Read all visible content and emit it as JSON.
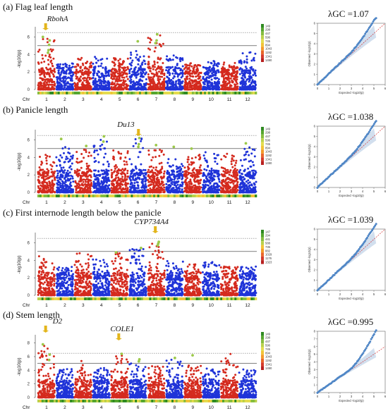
{
  "colors": {
    "odd_chr": "#d42a1e",
    "even_chr": "#1f33d8",
    "significant": "#9cc94a",
    "threshold_dotted": "#777777",
    "threshold_solid": "#333333",
    "qq_points": "#4f86c6",
    "qq_band": "#c7d7ea",
    "qq_diagonal": "#d21f1f",
    "arrow": "#e3b51b",
    "density_palette": [
      "#2f8a22",
      "#55a62e",
      "#86bd3f",
      "#b9d14b",
      "#e4dc4f",
      "#f2c338",
      "#f39a2a",
      "#e9662a",
      "#d53b2a",
      "#b82020"
    ]
  },
  "common": {
    "chr_axis_label": "Chr",
    "chromosomes": [
      "1",
      "2",
      "3",
      "4",
      "5",
      "6",
      "7",
      "8",
      "9",
      "10",
      "11",
      "12"
    ],
    "manhattan_ylabel": "-log10(p)",
    "qq_xlabel": "Expected -log10(p)",
    "qq_ylabel": "Observed -log10(p)",
    "qq_xticks": [
      "0",
      "1",
      "2",
      "3",
      "4",
      "5",
      "6"
    ],
    "lambda_prefix": "λGC ="
  },
  "chart_data": [
    {
      "type": "manhattan",
      "panel": "(a)",
      "title": "Flag leaf length",
      "ylim": [
        0,
        7
      ],
      "yticks": [
        "0",
        "2",
        "4",
        "6"
      ],
      "thresholds": {
        "suggestive": 5.0,
        "significant": 6.5
      },
      "gene_labels": [
        {
          "text": "RbohA",
          "chr": 1,
          "arrow": true
        }
      ],
      "density_legend": [
        "149",
        "298",
        "447",
        "596",
        "745",
        "894",
        "1043",
        "1192",
        "1341",
        "1490"
      ],
      "chromosome_peaks": [
        5.9,
        3.0,
        3.6,
        3.8,
        3.6,
        4.7,
        6.5,
        3.9,
        3.0,
        3.3,
        3.2,
        4.4
      ],
      "significant_snps": [
        {
          "chr": 1,
          "y": 6.0
        },
        {
          "chr": 1,
          "y": 5.6
        },
        {
          "chr": 1,
          "y": 5.1
        },
        {
          "chr": 1,
          "y": 4.5
        },
        {
          "chr": 1,
          "y": 4.2
        },
        {
          "chr": 7,
          "y": 6.3
        },
        {
          "chr": 7,
          "y": 5.6
        },
        {
          "chr": 6,
          "y": 5.5
        },
        {
          "chr": 7,
          "y": 5.3
        }
      ],
      "qq": {
        "lambda": "1.07",
        "yticks": [
          "0",
          "1",
          "2",
          "3",
          "4",
          "5",
          "6"
        ],
        "ymax": 6.5
      }
    },
    {
      "type": "manhattan",
      "panel": "(b)",
      "title": "Panicle length",
      "ylim": [
        0,
        7
      ],
      "yticks": [
        "0",
        "2",
        "4",
        "6"
      ],
      "thresholds": {
        "suggestive": 5.0,
        "significant": 6.5
      },
      "gene_labels": [
        {
          "text": "Du13",
          "chr": 6,
          "arrow": true
        }
      ],
      "density_legend": [
        "149",
        "298",
        "447",
        "596",
        "745",
        "894",
        "1043",
        "1192",
        "1341",
        "1490"
      ],
      "chromosome_peaks": [
        4.3,
        5.2,
        5.0,
        6.0,
        4.8,
        6.5,
        5.0,
        3.9,
        4.3,
        4.6,
        4.6,
        5.4
      ],
      "significant_snps": [
        {
          "chr": 2,
          "y": 6.1
        },
        {
          "chr": 3,
          "y": 5.3
        },
        {
          "chr": 4,
          "y": 6.4
        },
        {
          "chr": 4,
          "y": 5.8
        },
        {
          "chr": 6,
          "y": 6.2
        },
        {
          "chr": 6,
          "y": 5.5
        },
        {
          "chr": 6,
          "y": 5.2
        },
        {
          "chr": 7,
          "y": 5.4
        },
        {
          "chr": 8,
          "y": 5.2
        },
        {
          "chr": 9,
          "y": 5.0
        },
        {
          "chr": 12,
          "y": 5.6
        }
      ],
      "qq": {
        "lambda": "1.038",
        "yticks": [
          "0",
          "1",
          "2",
          "3",
          "4",
          "5",
          "6"
        ],
        "ymax": 6.5
      }
    },
    {
      "type": "manhattan",
      "panel": "(c)",
      "title": "First internode length below the panicle",
      "ylim": [
        0,
        7
      ],
      "yticks": [
        "0",
        "2",
        "4",
        "6"
      ],
      "thresholds": {
        "suggestive": 5.0,
        "significant": 6.5
      },
      "gene_labels": [
        {
          "text": "CYP734A4",
          "chr": 7,
          "arrow": true
        }
      ],
      "density_legend": [
        "147",
        "294",
        "441",
        "588",
        "735",
        "882",
        "1029",
        "1176",
        "1323"
      ],
      "chromosome_peaks": [
        4.5,
        3.5,
        4.8,
        4.1,
        4.9,
        5.4,
        6.1,
        4.0,
        3.6,
        3.8,
        3.4,
        3.3
      ],
      "significant_snps": [
        {
          "chr": 5,
          "y": 4.9
        },
        {
          "chr": 6,
          "y": 5.4
        },
        {
          "chr": 7,
          "y": 6.1
        },
        {
          "chr": 7,
          "y": 5.9
        },
        {
          "chr": 7,
          "y": 5.7
        }
      ],
      "qq": {
        "lambda": "1.039",
        "yticks": [
          "0",
          "1",
          "2",
          "3",
          "4",
          "5",
          "6"
        ],
        "ymax": 6.5
      }
    },
    {
      "type": "manhattan",
      "panel": "(d)",
      "title": "Stem length",
      "ylim": [
        0,
        9
      ],
      "yticks": [
        "0",
        "2",
        "4",
        "6",
        "8"
      ],
      "thresholds": {
        "suggestive": 5.0,
        "significant": 6.5
      },
      "gene_labels": [
        {
          "text": "D2",
          "chr": 1,
          "arrow": true
        },
        {
          "text": "COLE1",
          "chr": 5,
          "arrow": true
        }
      ],
      "density_legend": [
        "149",
        "298",
        "447",
        "596",
        "745",
        "894",
        "1043",
        "1192",
        "1341",
        "1490"
      ],
      "chromosome_peaks": [
        7.6,
        4.5,
        5.4,
        4.4,
        6.2,
        5.1,
        4.6,
        5.7,
        4.9,
        4.3,
        7.0,
        4.2
      ],
      "significant_snps": [
        {
          "chr": 1,
          "y": 7.8
        },
        {
          "chr": 1,
          "y": 6.3
        },
        {
          "chr": 1,
          "y": 5.5
        },
        {
          "chr": 5,
          "y": 6.4
        },
        {
          "chr": 6,
          "y": 5.6
        },
        {
          "chr": 6,
          "y": 5.3
        },
        {
          "chr": 8,
          "y": 5.8
        },
        {
          "chr": 9,
          "y": 6.2
        }
      ],
      "qq": {
        "lambda": "0.995",
        "yticks": [
          "0",
          "1",
          "2",
          "3",
          "4",
          "5",
          "6",
          "7",
          "8"
        ],
        "ymax": 8.3
      }
    }
  ]
}
